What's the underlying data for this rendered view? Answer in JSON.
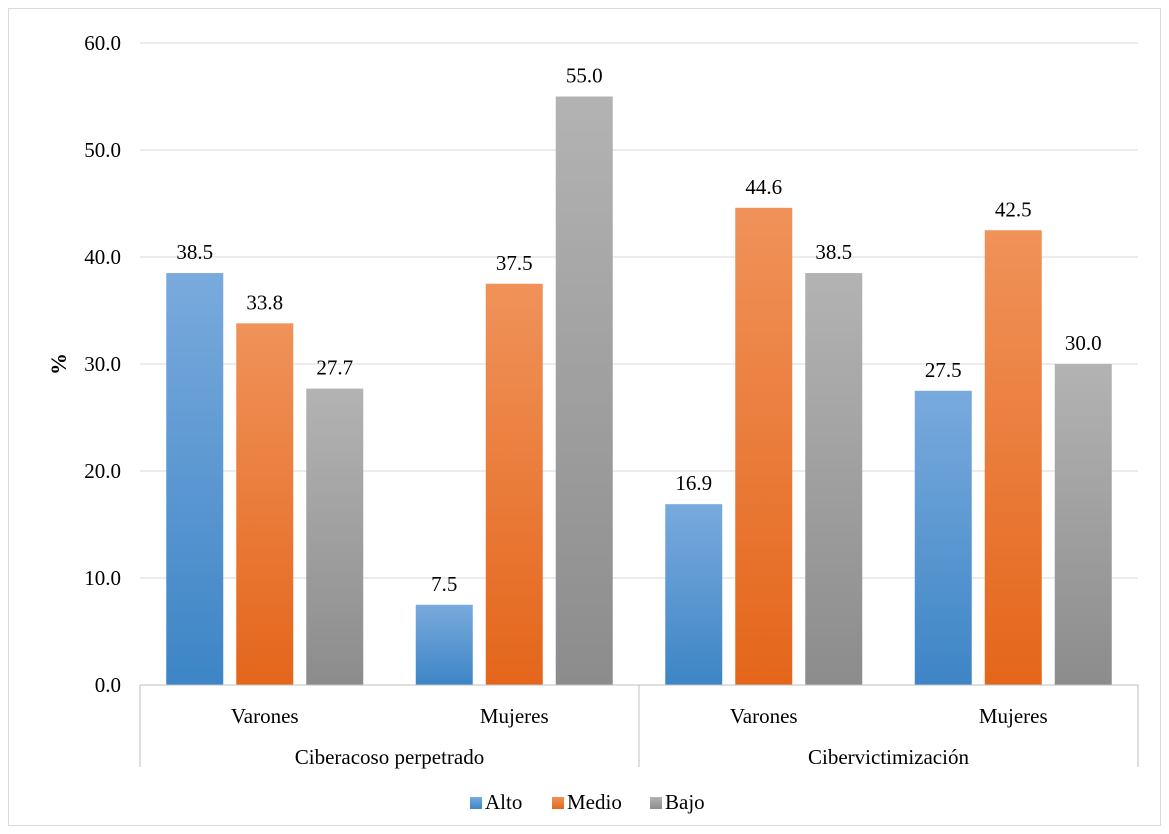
{
  "chart_data": {
    "type": "bar",
    "ylabel": "%",
    "ylim": [
      0,
      60
    ],
    "yticks": [
      0,
      10,
      20,
      30,
      40,
      50,
      60
    ],
    "ytick_labels": [
      "0.0",
      "10.0",
      "20.0",
      "30.0",
      "40.0",
      "50.0",
      "60.0"
    ],
    "groups": [
      {
        "label": "Ciberacoso perpetrado",
        "categories": [
          "Varones",
          "Mujeres"
        ]
      },
      {
        "label": "Cibervictimización",
        "categories": [
          "Varones",
          "Mujeres"
        ]
      }
    ],
    "categories": [
      "Varones",
      "Mujeres",
      "Varones",
      "Mujeres"
    ],
    "series": [
      {
        "name": "Alto",
        "values": [
          38.5,
          7.5,
          16.9,
          27.5
        ]
      },
      {
        "name": "Medio",
        "values": [
          33.8,
          37.5,
          44.6,
          42.5
        ]
      },
      {
        "name": "Bajo",
        "values": [
          27.7,
          55.0,
          38.5,
          30.0
        ]
      }
    ],
    "data_labels": [
      [
        "38.5",
        "7.5",
        "16.9",
        "27.5"
      ],
      [
        "33.8",
        "37.5",
        "44.6",
        "42.5"
      ],
      [
        "27.7",
        "55.0",
        "38.5",
        "30.0"
      ]
    ],
    "legend_position": "bottom",
    "grid": true,
    "colors": {
      "Alto": {
        "light": "#79aadd",
        "dark": "#3d85c6"
      },
      "Medio": {
        "light": "#f0925a",
        "dark": "#e4661b"
      },
      "Bajo": {
        "light": "#b3b3b3",
        "dark": "#8c8c8c"
      }
    },
    "gridline_color": "#d9d9d9",
    "axis_color": "#bfbfbf"
  }
}
